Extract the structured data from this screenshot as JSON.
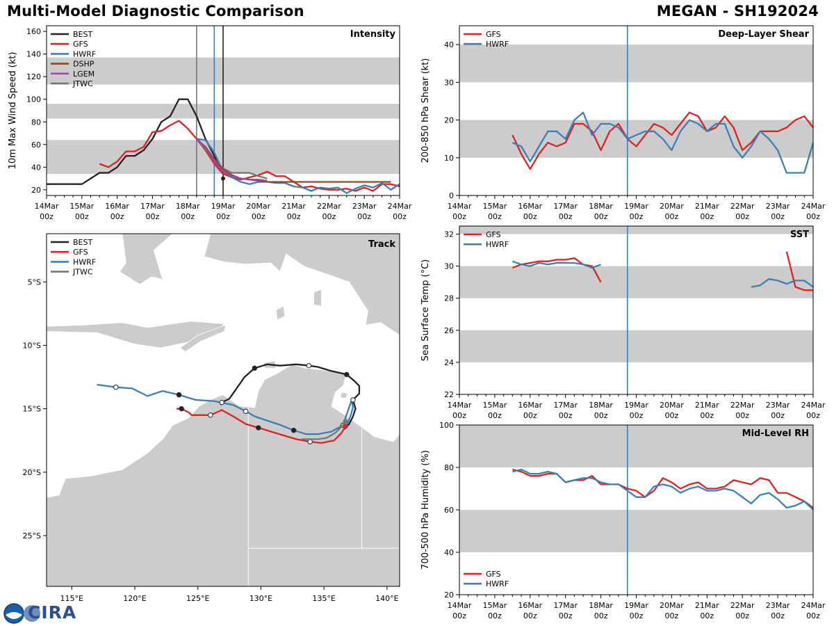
{
  "header": {
    "left_title": "Multi-Model Diagnostic Comparison",
    "right_title": "MEGAN - SH192024"
  },
  "logo": {
    "text": "CIRA"
  },
  "colors": {
    "BEST": "#222222",
    "GFS": "#dd2222",
    "HWRF": "#3a7fb8",
    "DSHP": "#8b4a26",
    "LGEM": "#9b4aa8",
    "JTWC": "#777777",
    "band": "#cccccc"
  },
  "time_axis": {
    "labels": [
      "14Mar\n00z",
      "15Mar\n00z",
      "16Mar\n00z",
      "17Mar\n00z",
      "18Mar\n00z",
      "19Mar\n00z",
      "20Mar\n00z",
      "21Mar\n00z",
      "22Mar\n00z",
      "23Mar\n00z",
      "24Mar\n00z"
    ],
    "range_hours": [
      0,
      240
    ]
  },
  "chart_data": [
    {
      "id": "intensity",
      "type": "line",
      "title": "Intensity",
      "ylabel": "10m Max Wind Speed (kt)",
      "ylim": [
        15,
        165
      ],
      "yticks": [
        20,
        40,
        60,
        80,
        100,
        120,
        140,
        160
      ],
      "bands": [
        [
          34,
          64
        ],
        [
          83,
          96
        ],
        [
          113,
          137
        ]
      ],
      "vlines": [
        {
          "x": 102,
          "color": "#777777"
        },
        {
          "x": 114,
          "color": "#3a7fb8"
        },
        {
          "x": 120,
          "color": "#222222"
        }
      ],
      "legend": [
        "BEST",
        "GFS",
        "HWRF",
        "DSHP",
        "LGEM",
        "JTWC"
      ],
      "series": [
        {
          "name": "BEST",
          "x": [
            0,
            6,
            12,
            18,
            24,
            30,
            36,
            42,
            48,
            54,
            60,
            66,
            72,
            78,
            84,
            90,
            96,
            102,
            108,
            114,
            120
          ],
          "y": [
            25,
            25,
            25,
            25,
            25,
            30,
            35,
            35,
            40,
            50,
            50,
            55,
            65,
            80,
            85,
            100,
            100,
            85,
            65,
            50,
            35
          ]
        },
        {
          "name": "GFS",
          "x": [
            36,
            42,
            48,
            54,
            60,
            66,
            72,
            78,
            84,
            90,
            96,
            102,
            108,
            114,
            120,
            126,
            132,
            138,
            144,
            150,
            156,
            162,
            168,
            174,
            180,
            186,
            192,
            198,
            204,
            210,
            216,
            222,
            228,
            234,
            240
          ],
          "y": [
            43,
            40,
            45,
            54,
            54,
            58,
            71,
            72,
            77,
            81,
            74,
            65,
            55,
            43,
            34,
            31,
            29,
            31,
            33,
            36,
            32,
            32,
            27,
            22,
            23,
            21,
            20,
            20,
            21,
            19,
            22,
            19,
            25,
            25,
            23
          ]
        },
        {
          "name": "HWRF",
          "x": [
            102,
            108,
            114,
            120,
            126,
            132,
            138,
            144,
            150,
            156,
            162,
            168,
            174,
            180,
            186,
            192,
            198,
            204,
            210,
            216,
            222,
            228,
            234,
            240
          ],
          "y": [
            65,
            64,
            53,
            36,
            31,
            27,
            25,
            27,
            27,
            26,
            26,
            23,
            22,
            19,
            22,
            21,
            22,
            17,
            21,
            24,
            22,
            26,
            20,
            25
          ]
        },
        {
          "name": "JTWC",
          "x": [
            102,
            108,
            114,
            120,
            126,
            132,
            138,
            144,
            150
          ],
          "y": [
            65,
            56,
            47,
            39,
            35,
            35,
            35,
            32,
            30
          ]
        },
        {
          "name": "DSHP",
          "x": [
            102,
            108,
            114,
            120,
            126,
            132,
            138,
            144,
            150,
            156,
            162,
            168,
            174,
            180,
            186,
            192,
            198,
            204,
            210,
            216,
            222,
            228,
            234
          ],
          "y": [
            65,
            58,
            47,
            38,
            33,
            30,
            29,
            28,
            27,
            27,
            27,
            27,
            27,
            27,
            27,
            27,
            27,
            27,
            27,
            27,
            27,
            27,
            27
          ]
        },
        {
          "name": "LGEM",
          "x": [
            102,
            108,
            114,
            120,
            126,
            132,
            138,
            144,
            150
          ],
          "y": [
            65,
            57,
            45,
            36,
            32,
            30,
            29,
            29,
            28
          ]
        }
      ]
    },
    {
      "id": "track",
      "type": "map",
      "title": "Track",
      "legend": [
        "BEST",
        "GFS",
        "HWRF",
        "JTWC"
      ],
      "lon_range": [
        113,
        141
      ],
      "lat_range": [
        -29,
        -1.2
      ],
      "xticks": [
        {
          "lon": 115,
          "label": "115°E"
        },
        {
          "lon": 120,
          "label": "120°E"
        },
        {
          "lon": 125,
          "label": "125°E"
        },
        {
          "lon": 130,
          "label": "130°E"
        },
        {
          "lon": 135,
          "label": "135°E"
        },
        {
          "lon": 140,
          "label": "140°E"
        }
      ],
      "yticks": [
        {
          "lat": -5,
          "label": "5°S"
        },
        {
          "lat": -10,
          "label": "10°S"
        },
        {
          "lat": -15,
          "label": "15°S"
        },
        {
          "lat": -20,
          "label": "20°S"
        },
        {
          "lat": -25,
          "label": "25°S"
        }
      ],
      "series": [
        {
          "name": "BEST",
          "lon": [
            136.6,
            137.0,
            137.3,
            137.5,
            137.3,
            137.8,
            137.8,
            137.4,
            136.8,
            136.4,
            135.5,
            134.5,
            133.8,
            132.8,
            131.5,
            130.5,
            129.5,
            128.7,
            128.0,
            127.5,
            126.9,
            126.8
          ],
          "lat": [
            -16.6,
            -16.2,
            -15.6,
            -15.0,
            -14.3,
            -13.8,
            -13.2,
            -12.8,
            -12.3,
            -12.2,
            -12.0,
            -11.7,
            -11.6,
            -11.5,
            -11.6,
            -11.5,
            -11.8,
            -12.5,
            -13.5,
            -14.2,
            -14.5,
            -14.7
          ]
        },
        {
          "name": "GFS",
          "lon": [
            136.7,
            136.4,
            135.8,
            134.8,
            133.9,
            132.8,
            131.8,
            130.8,
            129.8,
            128.8,
            127.8,
            126.9,
            126.0,
            125.2,
            124.5,
            124.3,
            123.7,
            123.3
          ],
          "lat": [
            -16.4,
            -16.9,
            -17.5,
            -17.7,
            -17.6,
            -17.4,
            -17.1,
            -16.8,
            -16.5,
            -16.2,
            -15.6,
            -15.1,
            -15.5,
            -15.5,
            -15.5,
            -15.3,
            -15.0,
            -15.0
          ]
        },
        {
          "name": "HWRF",
          "lon": [
            136.8,
            137.1,
            137.3,
            137.2,
            136.5,
            135.6,
            134.5,
            133.6,
            132.6,
            131.6,
            130.4,
            129.5,
            128.8,
            127.8,
            126.3,
            124.8,
            123.5,
            122.2,
            121.0,
            119.8,
            118.5,
            117.0
          ],
          "lat": [
            -16.3,
            -15.6,
            -14.9,
            -14.3,
            -16.3,
            -16.8,
            -17.0,
            -17.0,
            -16.7,
            -16.3,
            -15.9,
            -15.6,
            -15.2,
            -14.7,
            -14.4,
            -14.3,
            -13.9,
            -13.6,
            -14.0,
            -13.4,
            -13.3,
            -13.1
          ]
        },
        {
          "name": "JTWC",
          "lon": [
            136.7,
            136.4,
            135.9,
            135.2,
            134.5,
            133.8,
            133.2
          ],
          "lat": [
            -16.0,
            -16.4,
            -16.9,
            -17.3,
            -17.4,
            -17.4,
            -17.4
          ]
        }
      ]
    },
    {
      "id": "shear",
      "type": "line",
      "title": "Deep-Layer Shear",
      "ylabel": "200-850 hPa Shear (kt)",
      "ylim": [
        0,
        45
      ],
      "yticks": [
        0,
        10,
        20,
        30,
        40
      ],
      "bands": [
        [
          10,
          20
        ],
        [
          30,
          40
        ]
      ],
      "vlines": [
        {
          "x": 114,
          "color": "#3a7fb8"
        }
      ],
      "legend": [
        "GFS",
        "HWRF"
      ],
      "series": [
        {
          "name": "GFS",
          "x": [
            36,
            42,
            48,
            54,
            60,
            66,
            72,
            78,
            84,
            90,
            96,
            102,
            108,
            114,
            120,
            126,
            132,
            138,
            144,
            150,
            156,
            162,
            168,
            174,
            180,
            186,
            192,
            198,
            204,
            210,
            216,
            222,
            228,
            234,
            240
          ],
          "y": [
            16,
            11,
            7,
            11,
            14,
            13,
            14,
            19,
            19,
            17,
            12,
            17,
            19,
            15,
            13,
            16,
            19,
            18,
            16,
            19,
            22,
            21,
            17,
            18,
            21,
            18,
            12,
            14,
            17,
            17,
            17,
            18,
            20,
            21,
            18
          ]
        },
        {
          "name": "HWRF",
          "x": [
            36,
            42,
            48,
            54,
            60,
            66,
            72,
            78,
            84,
            90,
            96,
            102,
            108,
            114,
            120,
            126,
            132,
            138,
            144,
            150,
            156,
            162,
            168,
            174,
            180,
            186,
            192,
            198,
            204,
            210,
            216,
            222,
            228,
            234,
            240
          ],
          "y": [
            14,
            13,
            9,
            13,
            17,
            17,
            15,
            20,
            22,
            16,
            19,
            19,
            18,
            15,
            16,
            17,
            17,
            15,
            12,
            17,
            20,
            19,
            17,
            19,
            19,
            13,
            10,
            13,
            17,
            15,
            12,
            6,
            6,
            6,
            14
          ]
        }
      ]
    },
    {
      "id": "sst",
      "type": "line",
      "title": "SST",
      "ylabel": "Sea Surface Temp (°C)",
      "ylim": [
        22,
        32.5
      ],
      "yticks": [
        22,
        24,
        26,
        28,
        30,
        32
      ],
      "bands": [
        [
          24,
          26
        ],
        [
          28,
          30
        ],
        [
          32,
          34
        ]
      ],
      "vlines": [
        {
          "x": 114,
          "color": "#3a7fb8"
        }
      ],
      "legend": [
        "GFS",
        "HWRF"
      ],
      "series": [
        {
          "name": "GFS",
          "x": [
            36,
            42,
            48,
            54,
            60,
            66,
            72,
            78,
            84,
            90,
            96
          ],
          "y": [
            29.9,
            30.1,
            30.2,
            30.3,
            30.3,
            30.4,
            30.4,
            30.5,
            30.1,
            30.0,
            29.0
          ]
        },
        {
          "name": "GFS",
          "x": [
            222,
            228,
            234,
            240
          ],
          "y": [
            30.9,
            28.7,
            28.5,
            28.5
          ]
        },
        {
          "name": "HWRF",
          "x": [
            36,
            42,
            48,
            54,
            60,
            66,
            72,
            78,
            84,
            90,
            96
          ],
          "y": [
            30.3,
            30.1,
            30.0,
            30.2,
            30.1,
            30.2,
            30.2,
            30.2,
            30.1,
            29.9,
            30.1
          ]
        },
        {
          "name": "HWRF",
          "x": [
            198,
            204,
            210,
            216,
            222,
            228,
            234,
            240
          ],
          "y": [
            28.7,
            28.8,
            29.2,
            29.1,
            28.9,
            29.1,
            29.1,
            28.7
          ]
        }
      ]
    },
    {
      "id": "rh",
      "type": "line",
      "title": "Mid-Level RH",
      "ylabel": "700-500 hPa Humidity (%)",
      "ylim": [
        20,
        100
      ],
      "yticks": [
        20,
        40,
        60,
        80,
        100
      ],
      "bands": [
        [
          40,
          60
        ],
        [
          80,
          100
        ]
      ],
      "vlines": [
        {
          "x": 114,
          "color": "#3a7fb8"
        }
      ],
      "legend": [
        "GFS",
        "HWRF"
      ],
      "legend_position": "bottom-left",
      "series": [
        {
          "name": "GFS",
          "x": [
            36,
            42,
            48,
            54,
            60,
            66,
            72,
            78,
            84,
            90,
            96,
            102,
            108,
            114,
            120,
            126,
            132,
            138,
            144,
            150,
            156,
            162,
            168,
            174,
            180,
            186,
            192,
            198,
            204,
            210,
            216,
            222,
            228,
            234,
            240
          ],
          "y": [
            79,
            78,
            76,
            76,
            77,
            77,
            73,
            74,
            74,
            76,
            72,
            72,
            72,
            70,
            69,
            66,
            69,
            75,
            73,
            70,
            72,
            73,
            70,
            70,
            71,
            74,
            73,
            72,
            75,
            74,
            68,
            68,
            66,
            64,
            61
          ]
        },
        {
          "name": "HWRF",
          "x": [
            36,
            42,
            48,
            54,
            60,
            66,
            72,
            78,
            84,
            90,
            96,
            102,
            108,
            114,
            120,
            126,
            132,
            138,
            144,
            150,
            156,
            162,
            168,
            174,
            180,
            186,
            192,
            198,
            204,
            210,
            216,
            222,
            228,
            234,
            240
          ],
          "y": [
            78,
            79,
            77,
            77,
            78,
            77,
            73,
            74,
            75,
            75,
            73,
            72,
            72,
            69,
            66,
            66,
            71,
            72,
            71,
            68,
            70,
            71,
            69,
            69,
            70,
            69,
            66,
            63,
            67,
            68,
            65,
            61,
            62,
            64,
            60
          ]
        }
      ]
    }
  ]
}
